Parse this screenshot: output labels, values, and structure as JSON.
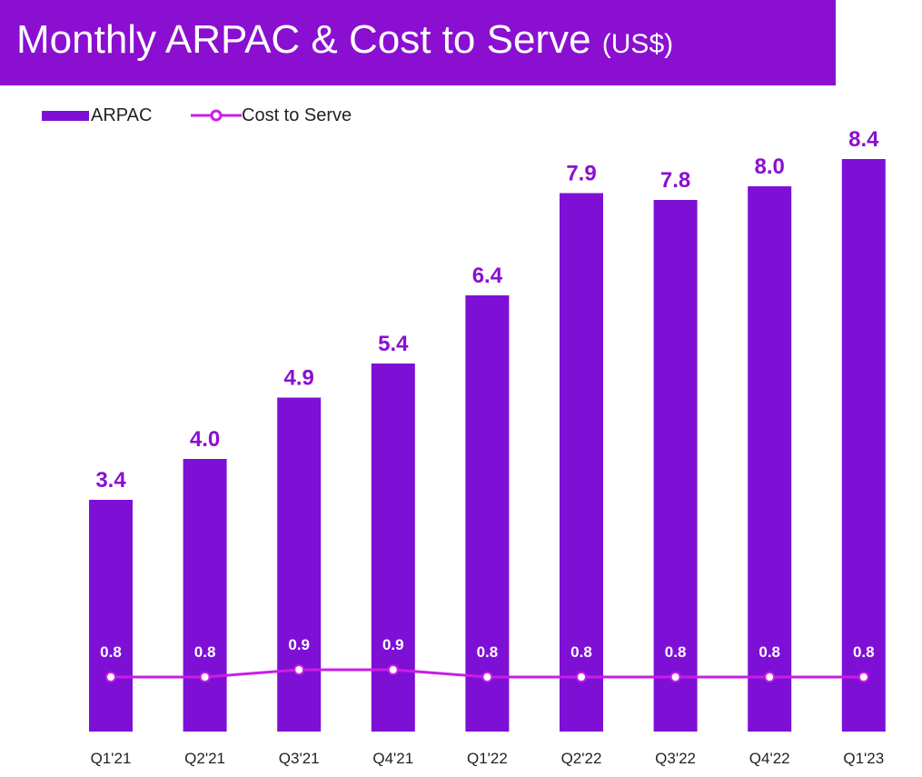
{
  "colors": {
    "banner": "#8a0fd1",
    "bar": "#7e10d6",
    "bar_label": "#8a0fd1",
    "line": "#c81ee6",
    "marker_fill": "#ffffff",
    "line_label": "#ffffff",
    "tick_label": "#222222"
  },
  "chart_data": {
    "type": "bar",
    "title": "Monthly ARPAC & Cost to Serve",
    "title_unit": "(US$)",
    "categories": [
      "Q1'21",
      "Q2'21",
      "Q3'21",
      "Q4'21",
      "Q1'22",
      "Q2'22",
      "Q3'22",
      "Q4'22",
      "Q1'23"
    ],
    "series": [
      {
        "name": "ARPAC",
        "type": "bar",
        "values": [
          3.4,
          4.0,
          4.9,
          5.4,
          6.4,
          7.9,
          7.8,
          8.0,
          8.4
        ],
        "labels": [
          "3.4",
          "4.0",
          "4.9",
          "5.4",
          "6.4",
          "7.9",
          "7.8",
          "8.0",
          "8.4"
        ]
      },
      {
        "name": "Cost to Serve",
        "type": "line",
        "values": [
          0.8,
          0.8,
          0.9,
          0.9,
          0.8,
          0.8,
          0.8,
          0.8,
          0.8
        ],
        "labels": [
          "0.8",
          "0.8",
          "0.9",
          "0.9",
          "0.8",
          "0.8",
          "0.8",
          "0.8",
          "0.8"
        ]
      }
    ],
    "xlabel": "",
    "ylabel": "",
    "ylim": [
      0,
      8.4
    ],
    "grid": false,
    "legend": "top-left"
  }
}
